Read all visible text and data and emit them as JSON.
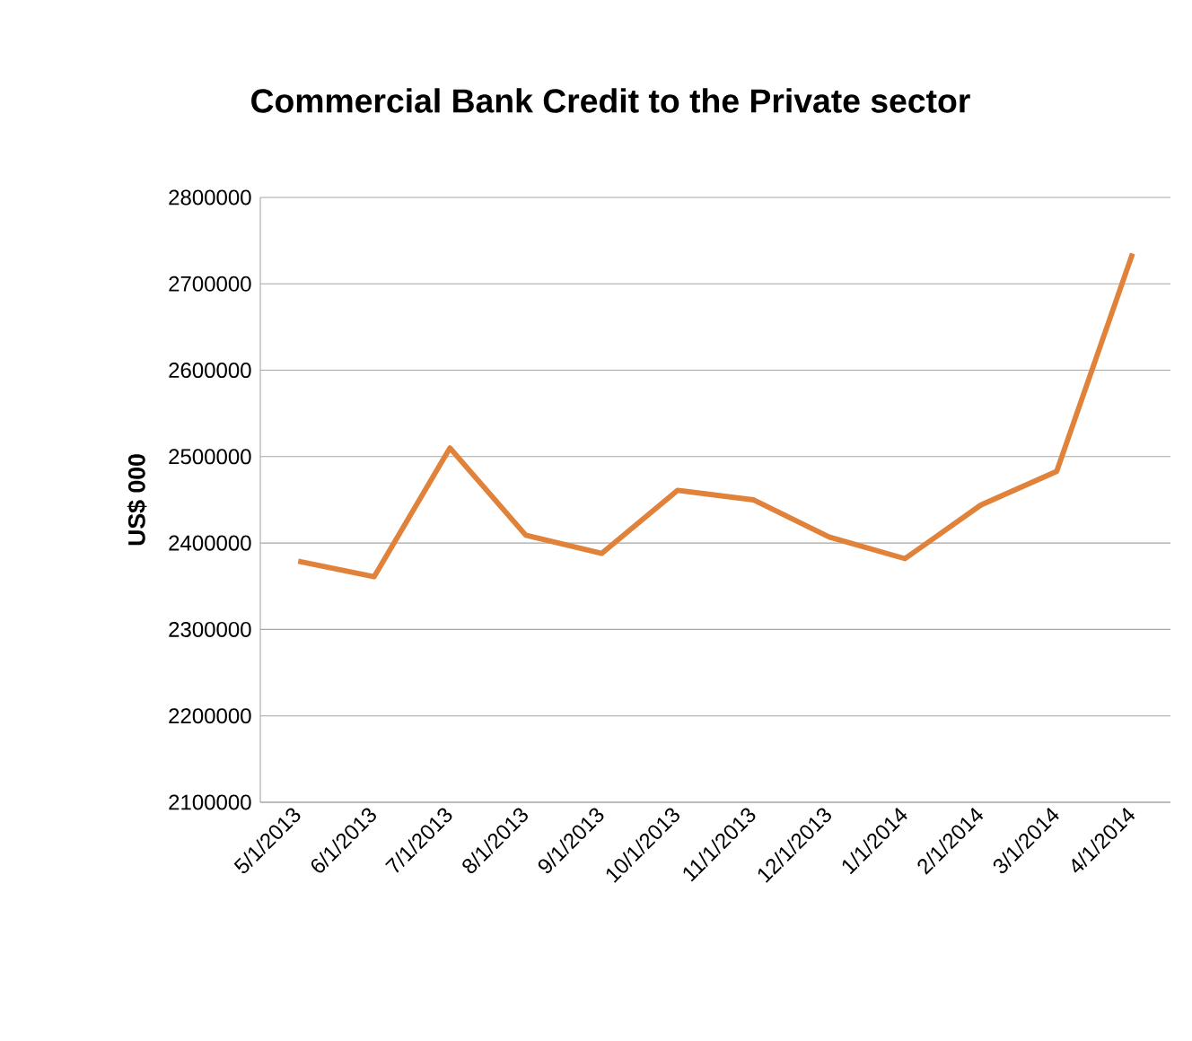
{
  "chart_data": {
    "type": "line",
    "title": "Commercial Bank Credit to the Private sector",
    "ylabel": "US$ 000",
    "categories": [
      "5/1/2013",
      "6/1/2013",
      "7/1/2013",
      "8/1/2013",
      "9/1/2013",
      "10/1/2013",
      "11/1/2013",
      "12/1/2013",
      "1/1/2014",
      "2/1/2014",
      "3/1/2014",
      "4/1/2014"
    ],
    "series": [
      {
        "color": "#e0823a",
        "values": [
          2379000,
          2361000,
          2510000,
          2409000,
          2388000,
          2461000,
          2450000,
          2407000,
          2382000,
          2444000,
          2483000,
          2735000
        ]
      }
    ],
    "ylim": [
      2100000,
      2800000
    ],
    "yticks": [
      2100000,
      2200000,
      2300000,
      2400000,
      2500000,
      2600000,
      2700000,
      2800000
    ],
    "grid": "y",
    "marker": "none",
    "line_style": "solid"
  }
}
